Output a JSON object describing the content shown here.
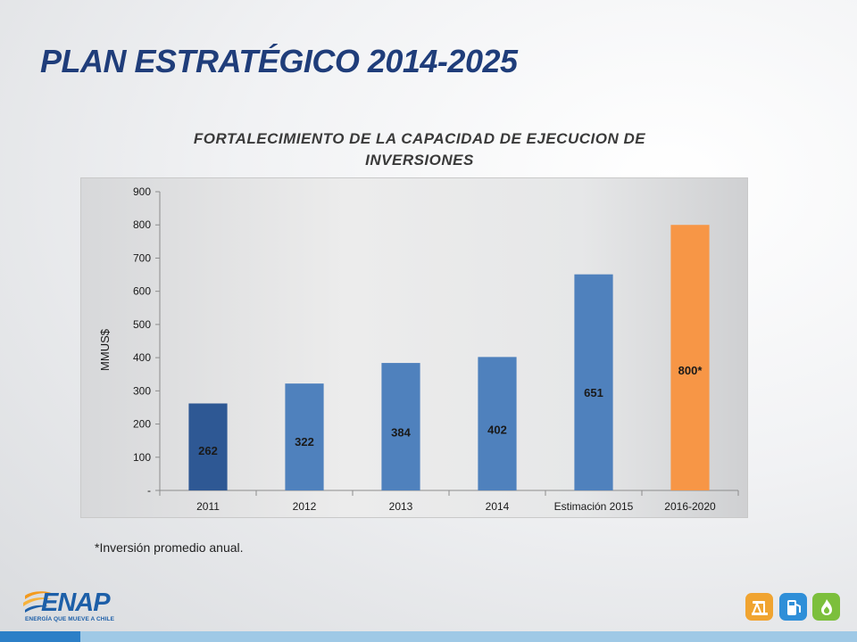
{
  "slide": {
    "title": "PLAN ESTRATÉGICO 2014-2025",
    "footnote": "*Inversión promedio anual."
  },
  "logo": {
    "name": "ENAP",
    "tagline": "ENERGÍA QUE MUEVE A CHILE"
  },
  "icons": [
    "oil-pump-icon",
    "fuel-pump-icon",
    "gas-flame-icon"
  ],
  "colors": {
    "title": "#1f3d7a",
    "bar_dark": "#2e5894",
    "bar": "#4f81bd",
    "bar_highlight": "#f79646",
    "icon_badge_orange": "#f0a431",
    "icon_badge_blue": "#2f8fd8",
    "icon_badge_green": "#7cbf3c"
  },
  "chart_data": {
    "type": "bar",
    "title": "FORTALECIMIENTO DE LA CAPACIDAD DE EJECUCION DE INVERSIONES",
    "xlabel": "",
    "ylabel": "MMUS$",
    "ylim": [
      0,
      900
    ],
    "yticks": [
      "-",
      "100",
      "200",
      "300",
      "400",
      "500",
      "600",
      "700",
      "800",
      "900"
    ],
    "categories": [
      "2011",
      "2012",
      "2013",
      "2014",
      "Estimación 2015",
      "2016-2020"
    ],
    "values": [
      262,
      322,
      384,
      402,
      651,
      800
    ],
    "data_labels": [
      "262",
      "322",
      "384",
      "402",
      "651",
      "800*"
    ],
    "bar_colors": [
      "#2e5894",
      "#4f81bd",
      "#4f81bd",
      "#4f81bd",
      "#4f81bd",
      "#f79646"
    ],
    "grid": false,
    "legend": "none"
  }
}
